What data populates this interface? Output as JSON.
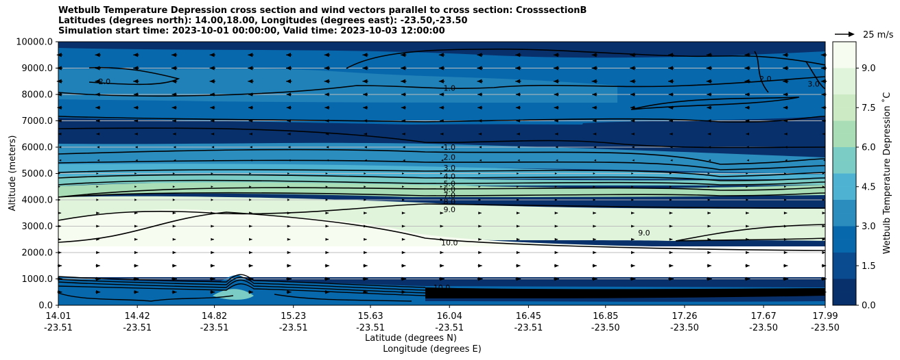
{
  "title": {
    "line1": "Wetbulb Temperature Depression cross section and wind vectors parallel to cross section: CrosssectionB",
    "line2": "Latitudes (degrees north): 14.00,18.00, Longitudes (degrees east): -23.50,-23.50",
    "line3": "Simulation start time: 2023-10-01 00:00:00, Valid time: 2023-10-03 12:00:00"
  },
  "chart_data": {
    "type": "heatmap",
    "xlabel": "Latitude (degrees N)",
    "xlabel2": "Longitude (degrees E)",
    "ylabel": "Altitude (meters)",
    "xlim": [
      14.01,
      17.99
    ],
    "ylim": [
      0,
      10000
    ],
    "x_ticks": [
      {
        "lat": "14.01",
        "lon": "-23.51",
        "value": 14.01
      },
      {
        "lat": "14.42",
        "lon": "-23.51",
        "value": 14.42
      },
      {
        "lat": "14.82",
        "lon": "-23.51",
        "value": 14.82
      },
      {
        "lat": "15.23",
        "lon": "-23.51",
        "value": 15.23
      },
      {
        "lat": "15.63",
        "lon": "-23.51",
        "value": 15.63
      },
      {
        "lat": "16.04",
        "lon": "-23.51",
        "value": 16.04
      },
      {
        "lat": "16.45",
        "lon": "-23.51",
        "value": 16.45
      },
      {
        "lat": "16.85",
        "lon": "-23.50",
        "value": 16.85
      },
      {
        "lat": "17.26",
        "lon": "-23.50",
        "value": 17.26
      },
      {
        "lat": "17.67",
        "lon": "-23.50",
        "value": 17.67
      },
      {
        "lat": "17.99",
        "lon": "-23.50",
        "value": 17.99
      }
    ],
    "y_ticks": [
      {
        "label": "0.0",
        "value": 0
      },
      {
        "label": "1000.0",
        "value": 1000
      },
      {
        "label": "2000.0",
        "value": 2000
      },
      {
        "label": "3000.0",
        "value": 3000
      },
      {
        "label": "4000.0",
        "value": 4000
      },
      {
        "label": "5000.0",
        "value": 5000
      },
      {
        "label": "6000.0",
        "value": 6000
      },
      {
        "label": "7000.0",
        "value": 7000
      },
      {
        "label": "8000.0",
        "value": 8000
      },
      {
        "label": "9000.0",
        "value": 9000
      },
      {
        "label": "10000.0",
        "value": 10000
      }
    ],
    "grid": "horizontal",
    "colorbar": {
      "label": "Wetbulb Temperature Depression ˚C",
      "range": [
        0,
        10
      ],
      "ticks": [
        {
          "label": "0.0",
          "value": 0
        },
        {
          "label": "1.5",
          "value": 1.5
        },
        {
          "label": "3.0",
          "value": 3
        },
        {
          "label": "4.5",
          "value": 4.5
        },
        {
          "label": "6.0",
          "value": 6
        },
        {
          "label": "7.5",
          "value": 7.5
        },
        {
          "label": "9.0",
          "value": 9
        }
      ]
    },
    "quiver_key": {
      "label": "25 m/s",
      "speed": 25
    },
    "contour_labels": [
      {
        "text": "1.0",
        "x": 16.04,
        "y": 8250
      },
      {
        "text": "1.0",
        "x": 16.04,
        "y": 6000
      },
      {
        "text": "2.0",
        "x": 16.04,
        "y": 5620
      },
      {
        "text": "3.0",
        "x": 16.04,
        "y": 5220
      },
      {
        "text": "4.0",
        "x": 16.04,
        "y": 4900
      },
      {
        "text": "5.0",
        "x": 16.04,
        "y": 4620
      },
      {
        "text": "6.0",
        "x": 16.04,
        "y": 4400
      },
      {
        "text": "7.0",
        "x": 16.04,
        "y": 4180
      },
      {
        "text": "8.0",
        "x": 16.04,
        "y": 3940
      },
      {
        "text": "9.0",
        "x": 16.04,
        "y": 3630
      },
      {
        "text": "10.0",
        "x": 16.04,
        "y": 2380
      },
      {
        "text": "10.0",
        "x": 16.0,
        "y": 680
      },
      {
        "text": "2.0",
        "x": 14.25,
        "y": 8500
      },
      {
        "text": "2.0",
        "x": 17.68,
        "y": 8600
      },
      {
        "text": "3.0",
        "x": 17.93,
        "y": 8400
      },
      {
        "text": "9.0",
        "x": 17.05,
        "y": 2750
      }
    ],
    "wind_rows": [
      {
        "altitude": 9500,
        "u": -0.6
      },
      {
        "altitude": 9000,
        "u": -0.6
      },
      {
        "altitude": 8500,
        "u": -0.6
      },
      {
        "altitude": 8000,
        "u": -0.5
      },
      {
        "altitude": 7500,
        "u": -0.5
      },
      {
        "altitude": 7000,
        "u": -0.4
      },
      {
        "altitude": 6500,
        "u": -0.3
      },
      {
        "altitude": 6000,
        "u": -0.2
      },
      {
        "altitude": 5500,
        "u": -0.1
      },
      {
        "altitude": 5000,
        "u": 0.1
      },
      {
        "altitude": 4500,
        "u": 0.15
      },
      {
        "altitude": 4000,
        "u": 0.2
      },
      {
        "altitude": 3500,
        "u": 0.3
      },
      {
        "altitude": 3000,
        "u": 0.3
      },
      {
        "altitude": 2500,
        "u": 0.3
      },
      {
        "altitude": 2000,
        "u": 0.35
      },
      {
        "altitude": 1500,
        "u": 0.45
      },
      {
        "altitude": 1000,
        "u": 0.55
      },
      {
        "altitude": 500,
        "u": 0.5
      }
    ],
    "colormap": [
      "#08306b",
      "#0a4a8f",
      "#0868ac",
      "#2b8cbe",
      "#4eb3d3",
      "#7bccc4",
      "#a8ddb5",
      "#ccebc5",
      "#e0f3db",
      "#f7fcf0",
      "#ffffff"
    ]
  }
}
